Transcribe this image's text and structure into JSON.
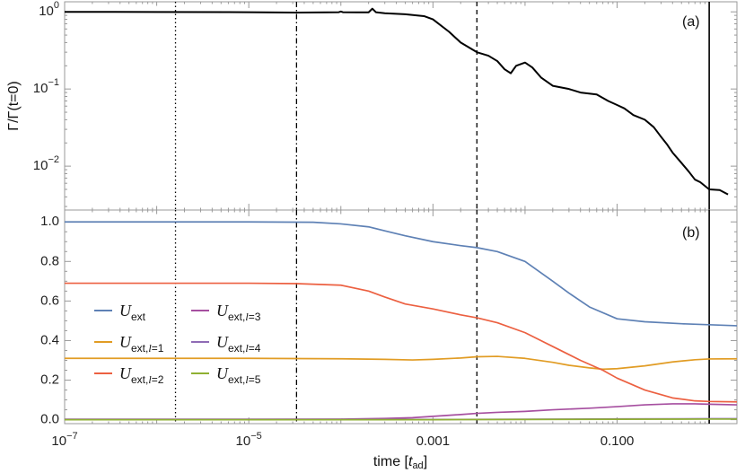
{
  "chart_data": [
    {
      "panel": "(a)",
      "type": "line",
      "ylabel": "Γ/Γ(t=0)",
      "xscale": "log",
      "yscale": "log",
      "xlim": [
        1e-07,
        2.0
      ],
      "ylim": [
        0.0027,
        1.35
      ],
      "x_ticks": [
        {
          "value": 1e-07,
          "base": "10",
          "exp": "−7"
        },
        {
          "value": 1e-05,
          "base": "10",
          "exp": "−5"
        },
        {
          "value": 0.001,
          "label": "0.001"
        },
        {
          "value": 0.1,
          "label": "0.100"
        }
      ],
      "y_ticks": [
        {
          "value": 1,
          "base": "10",
          "exp": "0"
        },
        {
          "value": 0.1,
          "base": "10",
          "exp": "−1"
        },
        {
          "value": 0.01,
          "base": "10",
          "exp": "−2"
        }
      ],
      "vlines": [
        {
          "x": 1.6e-06,
          "style": "dotted"
        },
        {
          "x": 3.3e-05,
          "style": "dashdot"
        },
        {
          "x": 0.003,
          "style": "dashed"
        },
        {
          "x": 1.0,
          "style": "solid"
        }
      ],
      "series": [
        {
          "color": "#000000",
          "x": [
            1e-07,
            1e-06,
            1e-05,
            3.3e-05,
            7e-05,
            9.5e-05,
            0.0001,
            0.000105,
            0.00015,
            0.0002,
            0.00022,
            0.00024,
            0.0003,
            0.0005,
            0.0008,
            0.001,
            0.0015,
            0.002,
            0.003,
            0.004,
            0.005,
            0.006,
            0.007,
            0.008,
            0.01,
            0.012,
            0.015,
            0.02,
            0.03,
            0.04,
            0.06,
            0.08,
            0.1,
            0.12,
            0.15,
            0.2,
            0.25,
            0.3,
            0.35,
            0.4,
            0.5,
            0.6,
            0.7,
            0.8,
            1.0,
            1.3,
            1.6
          ],
          "y": [
            1.0,
            0.995,
            0.99,
            0.98,
            0.985,
            0.99,
            1.01,
            0.99,
            0.985,
            0.985,
            1.1,
            0.99,
            0.96,
            0.93,
            0.88,
            0.8,
            0.55,
            0.4,
            0.3,
            0.27,
            0.23,
            0.18,
            0.16,
            0.2,
            0.22,
            0.19,
            0.14,
            0.11,
            0.1,
            0.09,
            0.085,
            0.07,
            0.062,
            0.056,
            0.046,
            0.04,
            0.032,
            0.024,
            0.019,
            0.015,
            0.011,
            0.0085,
            0.0067,
            0.0062,
            0.005,
            0.0049,
            0.0043
          ]
        }
      ]
    },
    {
      "panel": "(b)",
      "type": "line",
      "xlabel_parts": {
        "pre": "time [",
        "var": "t",
        "sub": "ad",
        "post": "]"
      },
      "xscale": "log",
      "xlim": [
        1e-07,
        2.0
      ],
      "ylim": [
        -0.02,
        1.06
      ],
      "x_ticks": [
        {
          "value": 1e-07,
          "base": "10",
          "exp": "−7"
        },
        {
          "value": 1e-05,
          "base": "10",
          "exp": "−5"
        },
        {
          "value": 0.001,
          "label": "0.001"
        },
        {
          "value": 0.1,
          "label": "0.100"
        }
      ],
      "y_ticks": [
        {
          "value": 0.0,
          "label": "0.0"
        },
        {
          "value": 0.2,
          "label": "0.2"
        },
        {
          "value": 0.4,
          "label": "0.4"
        },
        {
          "value": 0.6,
          "label": "0.6"
        },
        {
          "value": 0.8,
          "label": "0.8"
        },
        {
          "value": 1.0,
          "label": "1.0"
        }
      ],
      "vlines": [
        {
          "x": 1.6e-06,
          "style": "dotted"
        },
        {
          "x": 3.3e-05,
          "style": "dashdot"
        },
        {
          "x": 0.003,
          "style": "dashed"
        },
        {
          "x": 1.0,
          "style": "solid"
        }
      ],
      "legend_position": "center-left",
      "series": [
        {
          "legend": {
            "var": "U",
            "sub": "ext"
          },
          "color": "#5e81b5",
          "x": [
            1e-07,
            1e-05,
            5e-05,
            0.0001,
            0.0002,
            0.0003,
            0.0005,
            0.001,
            0.002,
            0.003,
            0.005,
            0.01,
            0.02,
            0.03,
            0.05,
            0.1,
            0.2,
            0.5,
            1.0,
            2.0
          ],
          "y": [
            1.0,
            1.0,
            0.998,
            0.99,
            0.975,
            0.955,
            0.93,
            0.9,
            0.88,
            0.87,
            0.85,
            0.8,
            0.7,
            0.64,
            0.57,
            0.51,
            0.495,
            0.485,
            0.48,
            0.475
          ]
        },
        {
          "legend": {
            "var": "U",
            "sub": "ext,",
            "subvar": "l",
            "subtail": "=1"
          },
          "color": "#e19c24",
          "x": [
            1e-07,
            1e-05,
            0.0001,
            0.0003,
            0.0006,
            0.001,
            0.002,
            0.003,
            0.005,
            0.01,
            0.02,
            0.03,
            0.05,
            0.07,
            0.1,
            0.2,
            0.4,
            0.7,
            1.0,
            2.0
          ],
          "y": [
            0.31,
            0.31,
            0.308,
            0.305,
            0.302,
            0.305,
            0.312,
            0.318,
            0.32,
            0.31,
            0.29,
            0.275,
            0.262,
            0.255,
            0.258,
            0.272,
            0.292,
            0.303,
            0.307,
            0.308
          ]
        },
        {
          "legend": {
            "var": "U",
            "sub": "ext,",
            "subvar": "l",
            "subtail": "=2"
          },
          "color": "#ec6041",
          "x": [
            1e-07,
            1e-05,
            3.3e-05,
            0.0001,
            0.0002,
            0.0003,
            0.0005,
            0.001,
            0.002,
            0.003,
            0.005,
            0.01,
            0.02,
            0.04,
            0.07,
            0.1,
            0.2,
            0.4,
            0.7,
            1.0,
            2.0
          ],
          "y": [
            0.69,
            0.69,
            0.688,
            0.68,
            0.65,
            0.62,
            0.585,
            0.56,
            0.53,
            0.515,
            0.49,
            0.44,
            0.37,
            0.3,
            0.25,
            0.21,
            0.15,
            0.11,
            0.095,
            0.092,
            0.09
          ]
        },
        {
          "legend": {
            "var": "U",
            "sub": "ext,",
            "subvar": "l",
            "subtail": "=3"
          },
          "color": "#a64fa0",
          "x": [
            1e-07,
            1e-05,
            0.0001,
            0.0003,
            0.0006,
            0.001,
            0.002,
            0.003,
            0.005,
            0.01,
            0.02,
            0.05,
            0.1,
            0.2,
            0.4,
            0.7,
            1.0,
            2.0
          ],
          "y": [
            0.002,
            0.002,
            0.003,
            0.006,
            0.01,
            0.017,
            0.026,
            0.032,
            0.037,
            0.042,
            0.05,
            0.058,
            0.066,
            0.075,
            0.08,
            0.08,
            0.078,
            0.075
          ]
        },
        {
          "legend": {
            "var": "U",
            "sub": "ext,",
            "subvar": "l",
            "subtail": "=4"
          },
          "color": "#8f6bb5",
          "x": [
            1e-07,
            0.001,
            0.01,
            0.1,
            1.0,
            2.0
          ],
          "y": [
            0.001,
            0.001,
            0.002,
            0.004,
            0.005,
            0.005
          ]
        },
        {
          "legend": {
            "var": "U",
            "sub": "ext,",
            "subvar": "l",
            "subtail": "=5"
          },
          "color": "#8fb032",
          "x": [
            1e-07,
            0.001,
            0.01,
            0.1,
            1.0,
            2.0
          ],
          "y": [
            0.0,
            0.0,
            0.001,
            0.002,
            0.003,
            0.003
          ]
        }
      ]
    }
  ]
}
